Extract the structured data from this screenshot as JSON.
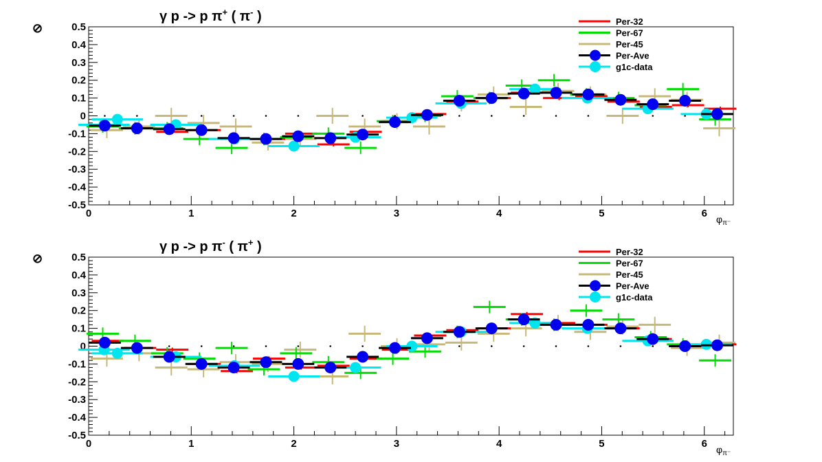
{
  "chart_data": [
    {
      "type": "scatter",
      "title_main": "γ p -> p π",
      "title_sup1": "+",
      "title_mid": " ( π",
      "title_sup2": "-",
      "title_end": " )",
      "ylabel": "⊘",
      "xlabel_main": "φ",
      "xlabel_sub": "π⁻",
      "xlim": [
        0,
        6.283
      ],
      "ylim": [
        -0.5,
        0.5
      ],
      "xticks": [
        "0",
        "1",
        "2",
        "3",
        "4",
        "5",
        "6"
      ],
      "yticks": [
        "-0.5",
        "-0.4",
        "-0.3",
        "-0.2",
        "-0.1",
        "0",
        "0.1",
        "0.2",
        "0.3",
        "0.4",
        "0.5"
      ],
      "legend": [
        "Per-32",
        "Per-67",
        "Per-45",
        "Per-Ave",
        "g1c-data"
      ],
      "reference_dots": [
        0.157,
        0.471,
        0.785,
        1.1,
        1.414,
        1.728,
        2.042,
        2.356,
        2.67,
        2.985,
        3.299,
        3.613,
        3.927,
        4.241,
        4.555,
        4.869,
        5.184,
        5.498,
        5.812,
        6.126
      ],
      "series": [
        {
          "name": "Per-32",
          "color": "#ff0000",
          "values": [
            -0.05,
            -0.07,
            -0.09,
            -0.08,
            -0.13,
            -0.13,
            -0.1,
            -0.16,
            -0.09,
            -0.03,
            0.01,
            0.08,
            0.1,
            0.13,
            0.1,
            0.11,
            0.08,
            0.05,
            0.06,
            0.04
          ]
        },
        {
          "name": "Per-67",
          "color": "#00dd00",
          "values": [
            -0.06,
            -0.07,
            -0.07,
            -0.13,
            -0.18,
            -0.13,
            -0.12,
            -0.1,
            -0.18,
            -0.03,
            0,
            0.11,
            0.1,
            0.17,
            0.2,
            0.12,
            0.1,
            0.06,
            0.15,
            -0.02
          ]
        },
        {
          "name": "Per-45",
          "color": "#c8b878",
          "values": [
            -0.08,
            -0.06,
            0,
            -0.04,
            -0.06,
            -0.15,
            -0.13,
            0,
            -0.06,
            -0.03,
            -0.06,
            0.07,
            0.12,
            0.05,
            0.14,
            0.12,
            0,
            0.11,
            0.09,
            -0.07
          ]
        },
        {
          "name": "Per-Ave",
          "color": "#0000ee",
          "values": [
            -0.055,
            -0.07,
            -0.075,
            -0.08,
            -0.125,
            -0.13,
            -0.115,
            -0.125,
            -0.105,
            -0.035,
            0.005,
            0.085,
            0.1,
            0.125,
            0.13,
            0.12,
            0.09,
            0.065,
            0.085,
            0.01
          ]
        },
        {
          "name": "g1c-data",
          "color": "#00e5ee",
          "x": [
            0.15,
            0.28,
            0.85,
            1.42,
            2.0,
            2.6,
            3.15,
            3.63,
            4.35,
            4.86,
            5.45,
            6.02
          ],
          "values": [
            -0.05,
            -0.02,
            -0.05,
            -0.13,
            -0.17,
            -0.12,
            -0.01,
            0.07,
            0.15,
            0.1,
            0.04,
            0.01
          ]
        }
      ]
    },
    {
      "type": "scatter",
      "title_main": "γ p -> p π",
      "title_sup1": "-",
      "title_mid": " ( π",
      "title_sup2": "+",
      "title_end": " )",
      "ylabel": "⊘",
      "xlabel_main": "φ",
      "xlabel_sub": "π⁻",
      "xlim": [
        0,
        6.283
      ],
      "ylim": [
        -0.5,
        0.5
      ],
      "xticks": [
        "0",
        "1",
        "2",
        "3",
        "4",
        "5",
        "6"
      ],
      "yticks": [
        "-0.5",
        "-0.4",
        "-0.3",
        "-0.2",
        "-0.1",
        "0",
        "0.1",
        "0.2",
        "0.3",
        "0.4",
        "0.5"
      ],
      "legend": [
        "Per-32",
        "Per-67",
        "Per-45",
        "Per-Ave",
        "g1c-data"
      ],
      "reference_dots": [
        0.157,
        0.471,
        0.785,
        1.1,
        1.414,
        1.728,
        2.042,
        2.356,
        2.67,
        2.985,
        3.299,
        3.613,
        3.927,
        4.241,
        4.555,
        4.869,
        5.184,
        5.498,
        5.812,
        6.126
      ],
      "series": [
        {
          "name": "Per-32",
          "color": "#ff0000",
          "values": [
            0.03,
            -0.01,
            -0.02,
            -0.1,
            -0.14,
            -0.07,
            -0.12,
            -0.11,
            -0.07,
            -0.02,
            0.06,
            0.09,
            0.1,
            0.18,
            0.13,
            0.12,
            0.1,
            0.04,
            0.0,
            0.01
          ]
        },
        {
          "name": "Per-67",
          "color": "#00dd00",
          "values": [
            0.07,
            0.03,
            -0.04,
            -0.07,
            -0.01,
            -0.13,
            -0.04,
            -0.09,
            -0.15,
            -0.07,
            -0.03,
            0.08,
            0.22,
            0.15,
            0.12,
            0.2,
            0.15,
            0.05,
            0.01,
            -0.08
          ]
        },
        {
          "name": "Per-45",
          "color": "#c8b878",
          "values": [
            -0.07,
            -0.04,
            -0.12,
            -0.13,
            -0.09,
            -0.1,
            -0.02,
            -0.17,
            0.07,
            0.0,
            0.01,
            0.02,
            0.07,
            0.1,
            0.13,
            0.08,
            0.11,
            0.12,
            -0.01,
            0.02
          ]
        },
        {
          "name": "Per-Ave",
          "color": "#0000ee",
          "values": [
            0.02,
            -0.01,
            -0.06,
            -0.1,
            -0.12,
            -0.09,
            -0.1,
            -0.12,
            -0.06,
            -0.01,
            0.045,
            0.08,
            0.1,
            0.15,
            0.12,
            0.12,
            0.1,
            0.04,
            0.0,
            0.005
          ]
        },
        {
          "name": "g1c-data",
          "color": "#00e5ee",
          "x": [
            0.15,
            0.28,
            0.85,
            1.42,
            2.0,
            2.6,
            3.15,
            3.63,
            4.35,
            4.86,
            5.45,
            6.02
          ],
          "values": [
            -0.02,
            -0.04,
            -0.06,
            -0.11,
            -0.17,
            -0.12,
            0.0,
            0.08,
            0.13,
            0.1,
            0.03,
            0.01
          ]
        }
      ]
    }
  ]
}
